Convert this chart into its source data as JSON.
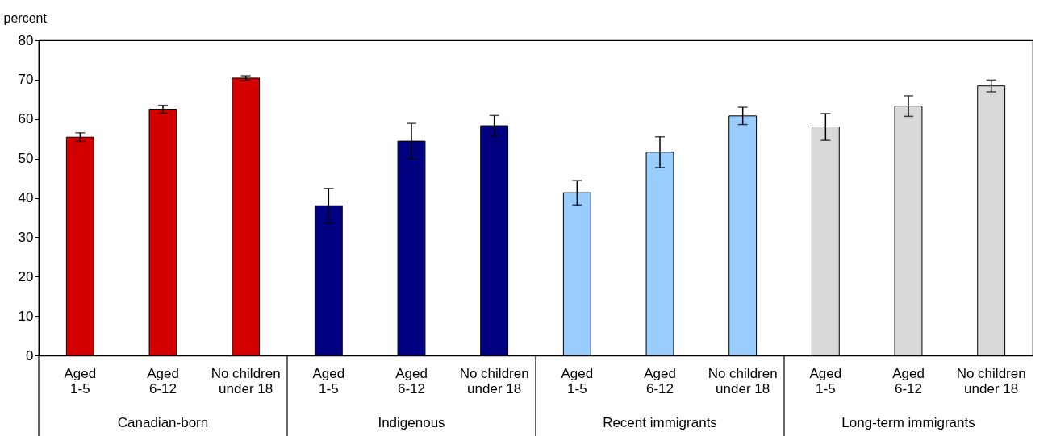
{
  "chart_data": {
    "type": "bar",
    "ylabel": "percent",
    "categories": [
      "Aged 1-5",
      "Aged 6-12",
      "No children under 18",
      "Aged 1-5",
      "Aged 6-12",
      "No children under 18",
      "Aged 1-5",
      "Aged 6-12",
      "No children under 18",
      "Aged 1-5",
      "Aged 6-12",
      "No children under 18"
    ],
    "values": [
      55.4,
      62.5,
      70.4,
      38.0,
      54.4,
      58.3,
      41.3,
      51.6,
      60.8,
      58.0,
      63.3,
      68.4
    ],
    "errors": [
      1.1,
      1.0,
      0.6,
      4.4,
      4.5,
      2.6,
      3.1,
      3.9,
      2.2,
      3.4,
      2.6,
      1.5
    ],
    "colors": [
      "#d40000",
      "#d40000",
      "#d40000",
      "#000080",
      "#000080",
      "#000080",
      "#99ccff",
      "#99ccff",
      "#99ccff",
      "#d9d9d9",
      "#d9d9d9",
      "#d9d9d9"
    ],
    "ylim": [
      0,
      80
    ],
    "yticks": [
      0,
      10,
      20,
      30,
      40,
      50,
      60,
      70,
      80
    ],
    "grid": false,
    "annotations": [
      "Canadian-born",
      "Indigenous",
      "Recent immigrants",
      "Long-term immigrants"
    ]
  }
}
